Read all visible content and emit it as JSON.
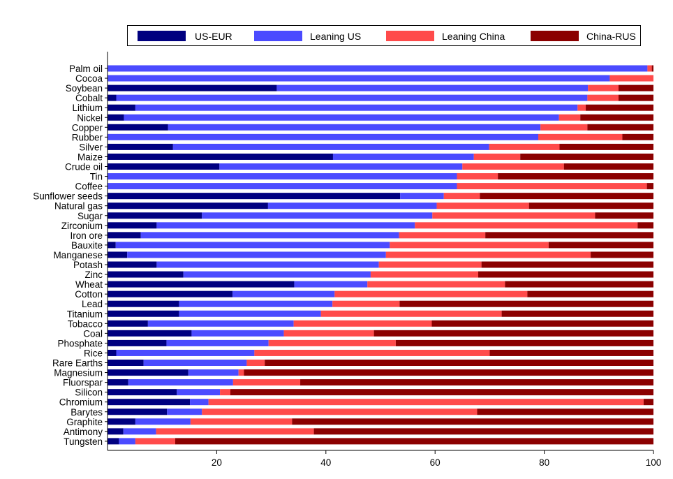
{
  "chart_data": {
    "type": "bar",
    "orientation": "horizontal",
    "stacked": true,
    "xlim": [
      0,
      100
    ],
    "xticks": [
      20,
      40,
      60,
      80,
      100
    ],
    "grid": false,
    "legend_position": "top",
    "series": [
      {
        "name": "US-EUR",
        "color": "#000080"
      },
      {
        "name": "Leaning US",
        "color": "#4b4bff"
      },
      {
        "name": "Leaning China",
        "color": "#ff4b4b"
      },
      {
        "name": "China-RUS",
        "color": "#8b0000"
      }
    ],
    "categories": [
      "Palm oil",
      "Cocoa",
      "Soybean",
      "Cobalt",
      "Lithium",
      "Nickel",
      "Copper",
      "Rubber",
      "Silver",
      "Maize",
      "Crude oil",
      "Tin",
      "Coffee",
      "Sunflower seeds",
      "Natural gas",
      "Sugar",
      "Zirconium",
      "Iron ore",
      "Bauxite",
      "Manganese",
      "Potash",
      "Zinc",
      "Wheat",
      "Cotton",
      "Lead",
      "Titanium",
      "Tobacco",
      "Coal",
      "Phosphate",
      "Rice",
      "Rare Earths",
      "Magnesium",
      "Fluorspar",
      "Silicon",
      "Chromium",
      "Barytes",
      "Graphite",
      "Antimony",
      "Tungsten"
    ],
    "values": [
      [
        0,
        98.9,
        0.8,
        0.3
      ],
      [
        0,
        92.0,
        8.0,
        0
      ],
      [
        31.0,
        57.0,
        5.6,
        6.4
      ],
      [
        1.6,
        86.3,
        5.7,
        6.4
      ],
      [
        5.1,
        81.0,
        1.5,
        12.4
      ],
      [
        3.0,
        79.7,
        3.9,
        13.4
      ],
      [
        11.1,
        68.2,
        8.6,
        12.1
      ],
      [
        0,
        78.9,
        15.4,
        5.7
      ],
      [
        12.0,
        57.9,
        12.9,
        17.2
      ],
      [
        41.3,
        25.8,
        8.5,
        24.4
      ],
      [
        20.5,
        44.5,
        18.6,
        16.4
      ],
      [
        0,
        64.0,
        7.5,
        28.5
      ],
      [
        0,
        64.0,
        34.8,
        1.2
      ],
      [
        53.6,
        8.0,
        6.6,
        31.8
      ],
      [
        29.4,
        30.9,
        16.9,
        22.8
      ],
      [
        17.3,
        42.2,
        29.8,
        10.7
      ],
      [
        9.0,
        47.3,
        40.8,
        2.9
      ],
      [
        6.1,
        47.3,
        15.8,
        30.8
      ],
      [
        1.5,
        50.2,
        29.1,
        19.2
      ],
      [
        3.6,
        47.4,
        37.5,
        11.5
      ],
      [
        9.0,
        40.7,
        18.8,
        31.5
      ],
      [
        13.9,
        34.3,
        19.7,
        32.1
      ],
      [
        34.2,
        13.4,
        25.2,
        27.2
      ],
      [
        22.9,
        18.7,
        35.3,
        23.1
      ],
      [
        13.1,
        28.1,
        12.3,
        46.5
      ],
      [
        13.1,
        26.0,
        33.1,
        27.8
      ],
      [
        7.4,
        26.7,
        25.3,
        40.6
      ],
      [
        15.4,
        16.9,
        16.5,
        51.2
      ],
      [
        10.8,
        18.7,
        23.3,
        47.2
      ],
      [
        1.6,
        25.3,
        43.1,
        30.0
      ],
      [
        6.6,
        18.9,
        3.3,
        71.2
      ],
      [
        14.8,
        9.2,
        1.0,
        75.0
      ],
      [
        3.8,
        19.2,
        12.3,
        64.7
      ],
      [
        12.7,
        7.9,
        1.9,
        77.5
      ],
      [
        15.1,
        3.4,
        79.7,
        1.8
      ],
      [
        10.9,
        6.4,
        50.4,
        32.3
      ],
      [
        5.1,
        10.1,
        18.6,
        66.2
      ],
      [
        2.9,
        6.0,
        28.9,
        62.2
      ],
      [
        2.1,
        3.0,
        7.3,
        87.6
      ]
    ]
  }
}
